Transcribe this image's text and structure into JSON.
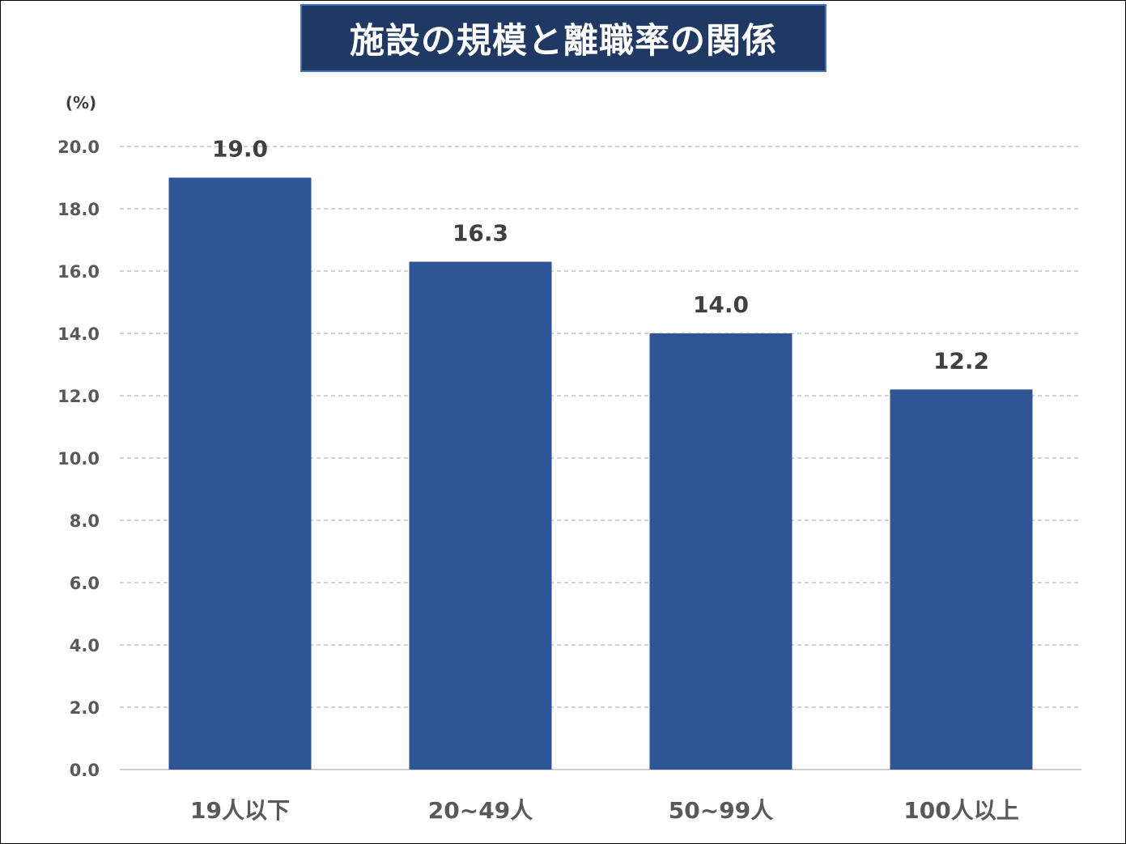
{
  "chart_data": {
    "type": "bar",
    "title": "施設の規模と離職率の関係",
    "unit_label": "(%)",
    "categories": [
      "19人以下",
      "20~49人",
      "50~99人",
      "100人以上"
    ],
    "values": [
      19.0,
      16.3,
      14.0,
      12.2
    ],
    "value_labels": [
      "19.0",
      "16.3",
      "14.0",
      "12.2"
    ],
    "ylim": [
      0,
      20
    ],
    "y_ticks": [
      "0.0",
      "2.0",
      "4.0",
      "6.0",
      "8.0",
      "10.0",
      "12.0",
      "14.0",
      "16.0",
      "18.0",
      "20.0"
    ],
    "grid": true,
    "legend": "none",
    "colors": {
      "bar": "#2f5597",
      "title_bg": "#1f3864",
      "title_border": "#4472c4",
      "gridline": "#a6a6a6"
    }
  }
}
